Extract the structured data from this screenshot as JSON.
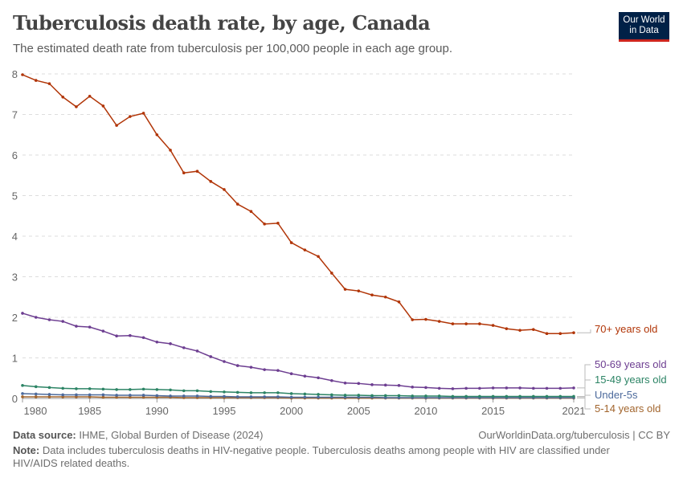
{
  "header": {
    "title": "Tuberculosis death rate, by age, Canada",
    "subtitle": "The estimated death rate from tuberculosis per 100,000 people in each age group.",
    "logo": "Our World in Data"
  },
  "footer": {
    "source_label": "Data source:",
    "source": "IHME, Global Burden of Disease (2024)",
    "url": "OurWorldinData.org/tuberculosis | CC BY",
    "note_label": "Note:",
    "note": "Data includes tuberculosis deaths in HIV-negative people. Tuberculosis deaths among people with HIV are classified under HIV/AIDS related deaths."
  },
  "chart_data": {
    "type": "line",
    "title": "Tuberculosis death rate, by age, Canada",
    "xlim": [
      1980,
      2021
    ],
    "ylim": [
      0,
      8
    ],
    "grid": true,
    "legend": "right-labels",
    "x_ticks": [
      "1980",
      "1985",
      "1990",
      "1995",
      "2000",
      "2005",
      "2010",
      "2015",
      "2021"
    ],
    "y_ticks": [
      "0",
      "1",
      "2",
      "3",
      "4",
      "5",
      "6",
      "7",
      "8"
    ],
    "x": [
      1980,
      1981,
      1982,
      1983,
      1984,
      1985,
      1986,
      1987,
      1988,
      1989,
      1990,
      1991,
      1992,
      1993,
      1994,
      1995,
      1996,
      1997,
      1998,
      1999,
      2000,
      2001,
      2002,
      2003,
      2004,
      2005,
      2006,
      2007,
      2008,
      2009,
      2010,
      2011,
      2012,
      2013,
      2014,
      2015,
      2016,
      2017,
      2018,
      2019,
      2020,
      2021
    ],
    "series": [
      {
        "name": "70+ years old",
        "color": "#b13507",
        "values": [
          7.98,
          7.84,
          7.76,
          7.43,
          7.19,
          7.45,
          7.21,
          6.73,
          6.95,
          7.03,
          6.5,
          6.12,
          5.56,
          5.6,
          5.35,
          5.15,
          4.79,
          4.61,
          4.3,
          4.32,
          3.84,
          3.66,
          3.5,
          3.09,
          2.69,
          2.65,
          2.55,
          2.5,
          2.38,
          1.94,
          1.95,
          1.9,
          1.84,
          1.84,
          1.84,
          1.8,
          1.72,
          1.68,
          1.7,
          1.6,
          1.6,
          1.62
        ]
      },
      {
        "name": "50-69 years old",
        "color": "#6d3e91",
        "values": [
          2.1,
          2.0,
          1.94,
          1.9,
          1.78,
          1.76,
          1.66,
          1.54,
          1.55,
          1.5,
          1.39,
          1.35,
          1.25,
          1.17,
          1.03,
          0.91,
          0.81,
          0.77,
          0.71,
          0.69,
          0.61,
          0.55,
          0.51,
          0.44,
          0.38,
          0.37,
          0.34,
          0.33,
          0.32,
          0.28,
          0.27,
          0.25,
          0.24,
          0.25,
          0.25,
          0.26,
          0.26,
          0.26,
          0.25,
          0.25,
          0.25,
          0.26
        ]
      },
      {
        "name": "15-49 years old",
        "color": "#2c8465",
        "values": [
          0.32,
          0.29,
          0.27,
          0.25,
          0.24,
          0.24,
          0.23,
          0.22,
          0.22,
          0.23,
          0.22,
          0.21,
          0.19,
          0.19,
          0.17,
          0.16,
          0.15,
          0.14,
          0.14,
          0.14,
          0.12,
          0.11,
          0.1,
          0.09,
          0.08,
          0.08,
          0.07,
          0.07,
          0.07,
          0.06,
          0.06,
          0.06,
          0.05,
          0.05,
          0.05,
          0.05,
          0.05,
          0.05,
          0.05,
          0.05,
          0.05,
          0.05
        ]
      },
      {
        "name": "Under-5s",
        "color": "#4c6a9c",
        "values": [
          0.12,
          0.11,
          0.1,
          0.09,
          0.09,
          0.09,
          0.09,
          0.08,
          0.08,
          0.08,
          0.07,
          0.06,
          0.06,
          0.06,
          0.05,
          0.05,
          0.04,
          0.04,
          0.04,
          0.04,
          0.03,
          0.03,
          0.03,
          0.03,
          0.03,
          0.03,
          0.03,
          0.02,
          0.02,
          0.02,
          0.02,
          0.02,
          0.02,
          0.02,
          0.02,
          0.02,
          0.02,
          0.02,
          0.02,
          0.02,
          0.02,
          0.02
        ]
      },
      {
        "name": "5-14 years old",
        "color": "#a2652d",
        "values": [
          0.04,
          0.04,
          0.04,
          0.04,
          0.04,
          0.04,
          0.03,
          0.03,
          0.03,
          0.03,
          0.03,
          0.03,
          0.02,
          0.02,
          0.02,
          0.02,
          0.02,
          0.02,
          0.02,
          0.02,
          0.01,
          0.01,
          0.01,
          0.01,
          0.01,
          0.01,
          0.01,
          0.01,
          0.01,
          0.01,
          0.01,
          0.01,
          0.01,
          0.01,
          0.01,
          0.01,
          0.01,
          0.01,
          0.01,
          0.01,
          0.01,
          0.01
        ]
      }
    ]
  }
}
